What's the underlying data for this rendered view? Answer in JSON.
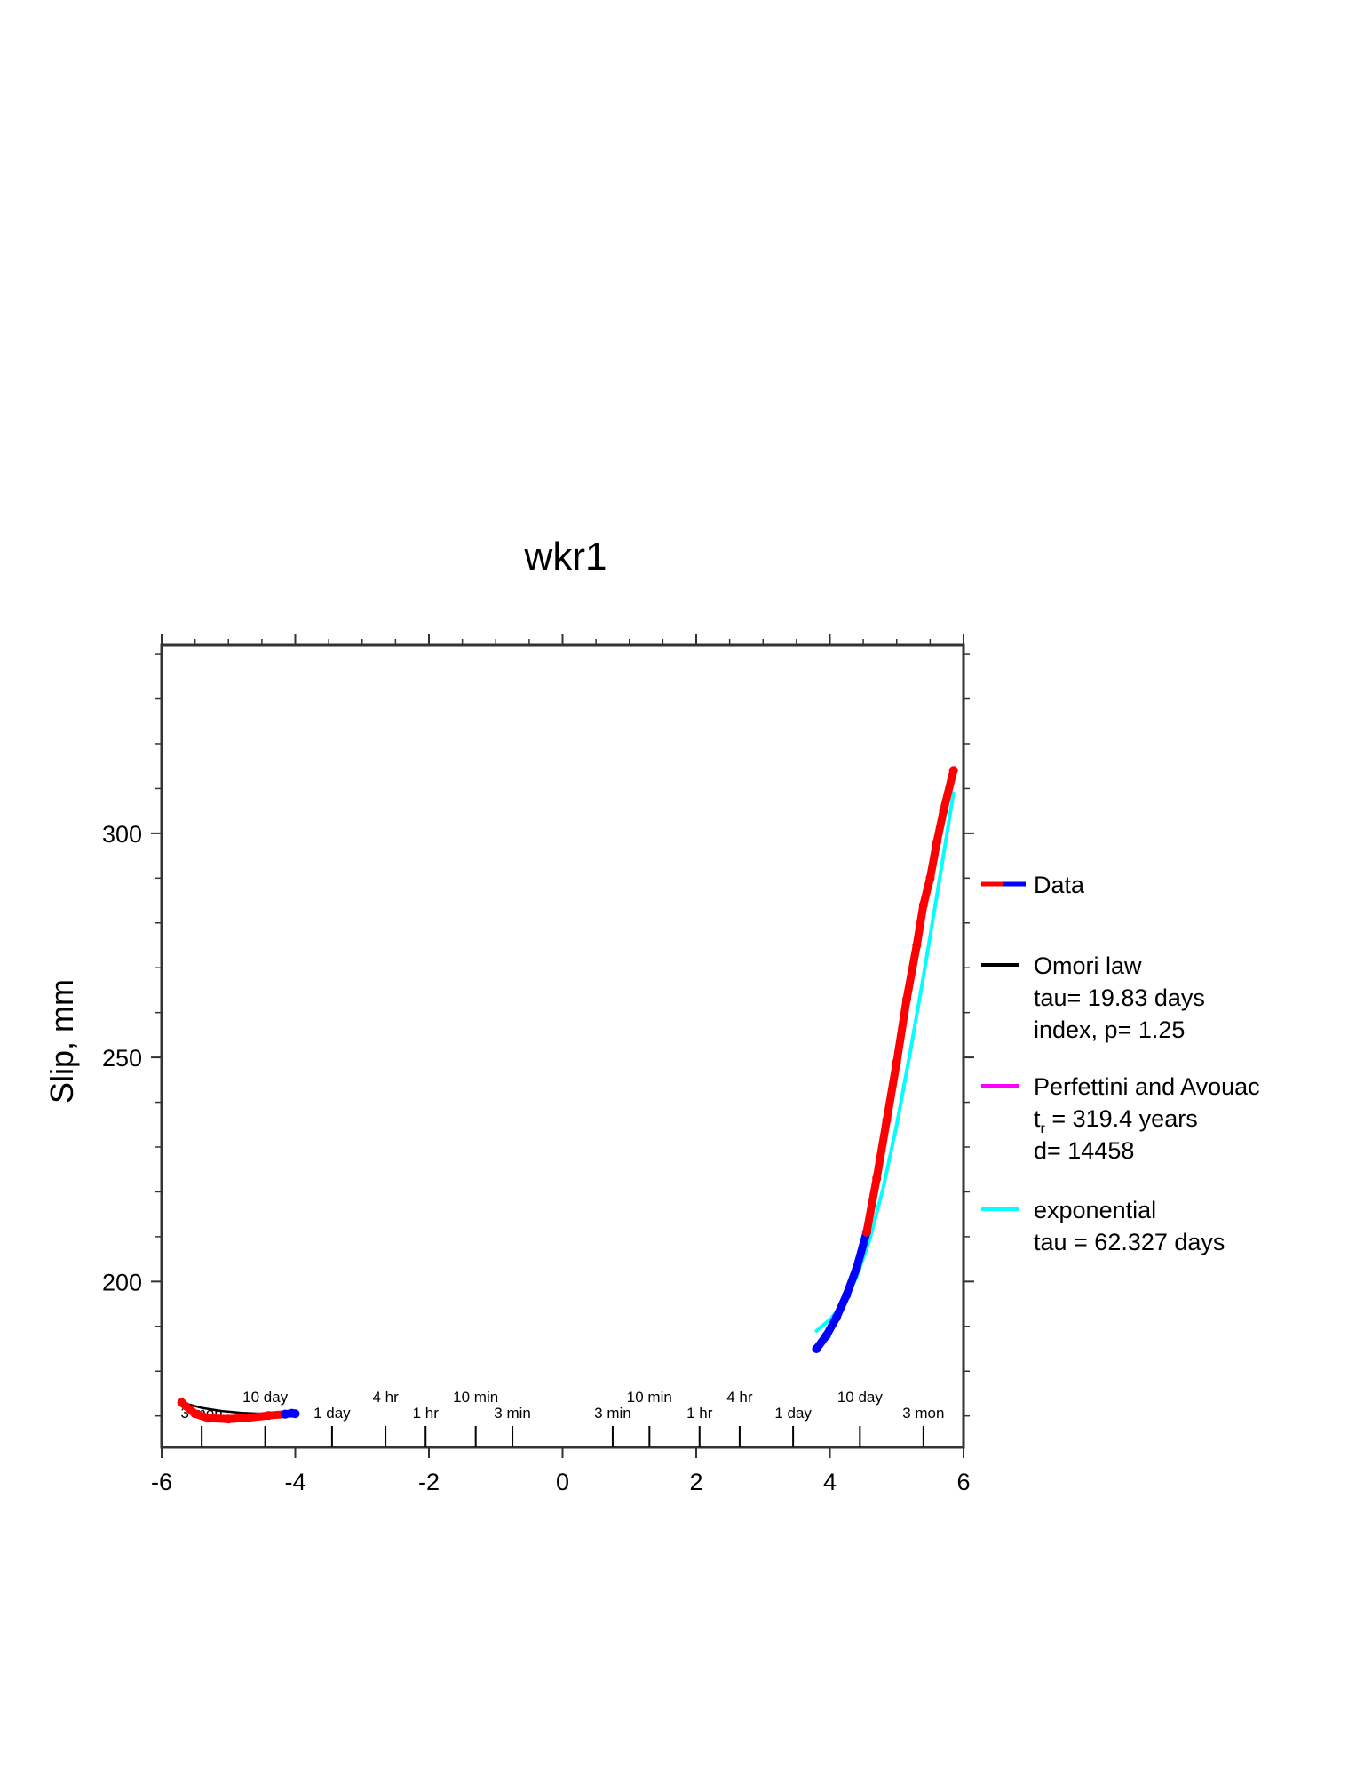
{
  "chart_data": {
    "type": "line",
    "title": "wkr1",
    "xlabel": "",
    "ylabel": "Slip, mm",
    "xlim": [
      -6,
      6
    ],
    "ylim": [
      163,
      342
    ],
    "x_ticks": [
      -6,
      -4,
      -2,
      0,
      2,
      4,
      6
    ],
    "x_tick_labels": [
      "-6",
      "-4",
      "-2",
      "0",
      "2",
      "4",
      "6"
    ],
    "y_ticks": [
      200,
      250,
      300
    ],
    "y_tick_labels": [
      "200",
      "250",
      "300"
    ],
    "grid": false,
    "legend_position": "right",
    "time_scale_labels": [
      {
        "label": "3 mon",
        "x": -5.4,
        "row": "lower"
      },
      {
        "label": "10 day",
        "x": -4.45,
        "row": "upper"
      },
      {
        "label": "1 day",
        "x": -3.45,
        "row": "lower"
      },
      {
        "label": "4 hr",
        "x": -2.65,
        "row": "upper"
      },
      {
        "label": "1 hr",
        "x": -2.05,
        "row": "lower"
      },
      {
        "label": "10 min",
        "x": -1.3,
        "row": "upper"
      },
      {
        "label": "3 min",
        "x": -0.75,
        "row": "lower"
      },
      {
        "label": "3 min",
        "x": 0.75,
        "row": "lower"
      },
      {
        "label": "10 min",
        "x": 1.3,
        "row": "upper"
      },
      {
        "label": "1 hr",
        "x": 2.05,
        "row": "lower"
      },
      {
        "label": "4 hr",
        "x": 2.65,
        "row": "upper"
      },
      {
        "label": "1 day",
        "x": 3.45,
        "row": "lower"
      },
      {
        "label": "10 day",
        "x": 4.45,
        "row": "upper"
      },
      {
        "label": "3 mon",
        "x": 5.4,
        "row": "lower"
      }
    ],
    "series": [
      {
        "name": "Data",
        "color": "#ff0000",
        "secondary_color": "#0000ff",
        "segments": [
          {
            "x": [
              -5.7,
              -5.5,
              -5.3,
              -5.0,
              -4.7,
              -4.4,
              -4.15
            ],
            "y": [
              173,
              170.5,
              169.5,
              169.3,
              169.6,
              170.1,
              170.4
            ]
          },
          {
            "x": [
              -4.15,
              -4.05,
              -4.0
            ],
            "y": [
              170.4,
              170.6,
              170.5
            ],
            "color": "#0000ff"
          },
          {
            "x": [
              3.8,
              3.95,
              4.1,
              4.25,
              4.4,
              4.55
            ],
            "y": [
              185,
              188,
              192,
              197,
              203,
              211
            ],
            "color": "#0000ff"
          },
          {
            "x": [
              4.55,
              4.7,
              4.85,
              5.0,
              5.15,
              5.3,
              5.4,
              5.5,
              5.6,
              5.7,
              5.85
            ],
            "y": [
              211,
              223,
              236,
              249,
              263,
              275,
              284,
              290,
              298,
              305,
              314
            ]
          }
        ]
      },
      {
        "name": "Omori law",
        "color": "#000000",
        "segments": [
          {
            "x": [
              -5.7,
              -5.4,
              -5.1,
              -4.8,
              -4.5,
              -4.2,
              -4.0
            ],
            "y": [
              173,
              171.8,
              171.1,
              170.7,
              170.5,
              170.45,
              170.4
            ]
          }
        ]
      },
      {
        "name": "Perfettini and Avouac",
        "color": "#ff00ff",
        "segments": []
      },
      {
        "name": "exponential",
        "color": "#00ffff",
        "segments": [
          {
            "x": [
              3.8,
              4.0,
              4.2,
              4.4,
              4.6,
              4.8,
              5.0,
              5.2,
              5.4,
              5.6,
              5.85
            ],
            "y": [
              189,
              191.5,
              195,
              201,
              209.5,
              221,
              235,
              251,
              268,
              286,
              309
            ]
          }
        ]
      }
    ],
    "legend": [
      {
        "name": "Data",
        "lines": []
      },
      {
        "name": "Omori law",
        "lines": [
          "tau= 19.83 days",
          "index, p= 1.25"
        ]
      },
      {
        "name": "Perfettini and Avouac",
        "lines": [
          "= 319.4 years",
          "d= 14458"
        ],
        "subscript_prefix": {
          "base": "t",
          "sub": "r"
        }
      },
      {
        "name": "exponential",
        "lines": [
          "tau = 62.327 days"
        ]
      }
    ]
  }
}
